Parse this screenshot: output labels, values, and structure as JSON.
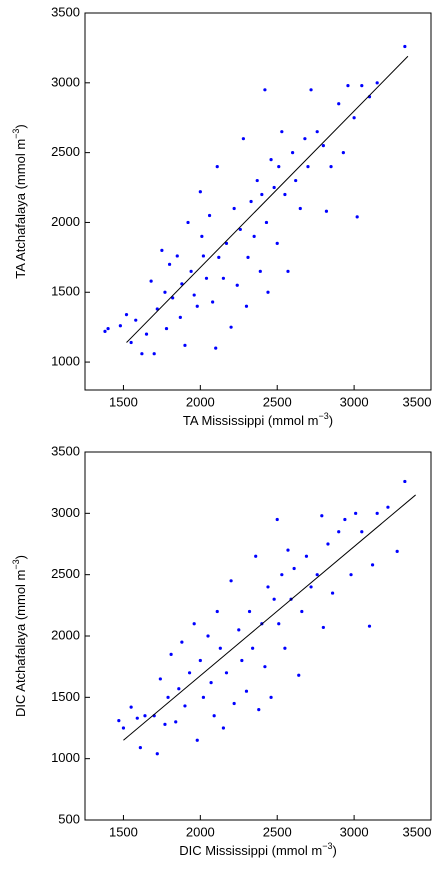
{
  "chart_data": [
    {
      "type": "scatter",
      "color": "#0000ff",
      "xlabel": [
        "TA Mississippi (mmol m",
        "−3",
        ")"
      ],
      "ylabel": [
        "TA Atchafalaya (mmol m",
        "−3",
        ")"
      ],
      "xlim": [
        1250,
        3500
      ],
      "xticks": [
        1500,
        2000,
        2500,
        3000,
        3500
      ],
      "ylim": [
        800,
        3500
      ],
      "yticks": [
        1000,
        1500,
        2000,
        2500,
        3000,
        3500
      ],
      "x": [
        1380,
        1400,
        1480,
        1520,
        1550,
        1580,
        1620,
        1650,
        1680,
        1700,
        1720,
        1750,
        1770,
        1780,
        1800,
        1820,
        1850,
        1870,
        1880,
        1900,
        1920,
        1940,
        1960,
        1980,
        2000,
        2010,
        2020,
        2040,
        2060,
        2080,
        2100,
        2110,
        2120,
        2150,
        2170,
        2200,
        2220,
        2240,
        2260,
        2280,
        2300,
        2310,
        2330,
        2350,
        2370,
        2390,
        2400,
        2420,
        2430,
        2440,
        2460,
        2480,
        2500,
        2510,
        2530,
        2550,
        2570,
        2600,
        2620,
        2650,
        2680,
        2700,
        2720,
        2760,
        2800,
        2820,
        2850,
        2900,
        2930,
        2960,
        3000,
        3020,
        3050,
        3100,
        3150,
        3330
      ],
      "values": [
        1220,
        1240,
        1260,
        1340,
        1140,
        1300,
        1060,
        1200,
        1580,
        1060,
        1380,
        1800,
        1500,
        1240,
        1700,
        1460,
        1760,
        1320,
        1560,
        1120,
        2000,
        1650,
        1480,
        1400,
        2220,
        1900,
        1760,
        1600,
        2050,
        1430,
        1100,
        2400,
        1750,
        1600,
        1850,
        1250,
        2100,
        1550,
        1950,
        2600,
        1400,
        1750,
        2150,
        1900,
        2300,
        1650,
        2200,
        2950,
        2000,
        1500,
        2450,
        2250,
        1850,
        2400,
        2650,
        2200,
        1650,
        2500,
        2300,
        2100,
        2600,
        2400,
        2950,
        2650,
        2550,
        2080,
        2400,
        2850,
        2500,
        2980,
        2750,
        2040,
        2980,
        2900,
        3000,
        3260
      ],
      "fit": {
        "color": "#000000",
        "x": [
          1520,
          3350
        ],
        "values": [
          1140,
          3190
        ]
      }
    },
    {
      "type": "scatter",
      "color": "#0000ff",
      "xlabel": [
        "DIC Mississippi (mmol m",
        "−3",
        ")"
      ],
      "ylabel": [
        "DIC Atchafalaya (mmol m",
        "−3",
        ")"
      ],
      "xlim": [
        1250,
        3500
      ],
      "xticks": [
        1500,
        2000,
        2500,
        3000,
        3500
      ],
      "ylim": [
        500,
        3500
      ],
      "yticks": [
        500,
        1000,
        1500,
        2000,
        2500,
        3000,
        3500
      ],
      "x": [
        1470,
        1500,
        1550,
        1590,
        1610,
        1640,
        1700,
        1720,
        1740,
        1770,
        1790,
        1810,
        1840,
        1860,
        1880,
        1900,
        1930,
        1960,
        1980,
        2000,
        2020,
        2050,
        2070,
        2090,
        2110,
        2130,
        2150,
        2170,
        2200,
        2220,
        2250,
        2270,
        2300,
        2320,
        2340,
        2360,
        2380,
        2400,
        2420,
        2440,
        2460,
        2480,
        2500,
        2510,
        2530,
        2550,
        2570,
        2590,
        2610,
        2640,
        2660,
        2690,
        2720,
        2760,
        2790,
        2800,
        2830,
        2860,
        2900,
        2940,
        2980,
        3010,
        3050,
        3100,
        3120,
        3150,
        3220,
        3280,
        3330
      ],
      "values": [
        1310,
        1250,
        1420,
        1330,
        1090,
        1350,
        1350,
        1040,
        1650,
        1280,
        1500,
        1850,
        1300,
        1570,
        1950,
        1430,
        1700,
        2100,
        1150,
        1800,
        1500,
        2000,
        1620,
        1350,
        2200,
        1900,
        1250,
        1700,
        2450,
        1450,
        2050,
        1800,
        1550,
        2200,
        1900,
        2650,
        1400,
        2100,
        1750,
        2400,
        1500,
        2300,
        2950,
        2100,
        2500,
        1900,
        2700,
        2300,
        2550,
        1680,
        2200,
        2650,
        2400,
        2500,
        2980,
        2070,
        2750,
        2350,
        2850,
        2950,
        2500,
        3000,
        2850,
        2080,
        2580,
        3000,
        3050,
        2690,
        3260
      ],
      "fit": {
        "color": "#000000",
        "x": [
          1500,
          3400
        ],
        "values": [
          1150,
          3150
        ]
      }
    }
  ]
}
